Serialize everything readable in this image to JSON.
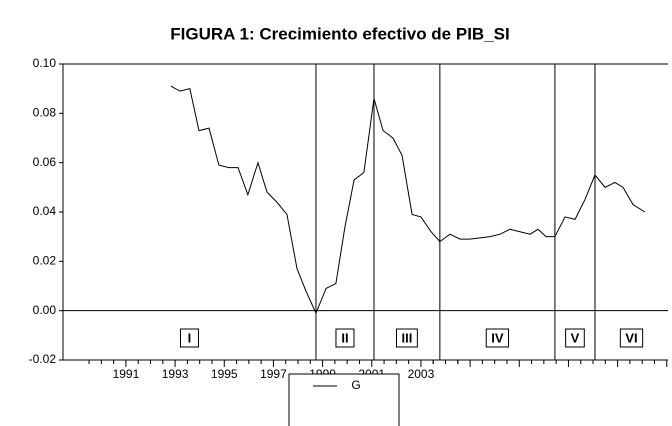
{
  "chart_data": {
    "type": "line",
    "title": "FIGURA 1: Crecimiento efectivo de PIB_SI",
    "x": [
      1992.83,
      1993.2,
      1993.6,
      1993.97,
      1994.38,
      1994.78,
      1995.19,
      1995.56,
      1995.96,
      1996.37,
      1996.74,
      1997.14,
      1997.55,
      1997.96,
      1998.32,
      1998.73,
      1999.14,
      1999.54,
      1999.91,
      2000.28,
      2000.68,
      2001.09,
      2001.46,
      2001.86,
      2002.23,
      2002.64,
      2003.0,
      2003.41,
      2003.77,
      2004.18,
      2004.59,
      2004.99,
      2005.4,
      2005.81,
      2006.22,
      2006.62,
      2007.03,
      2007.44,
      2007.76,
      2008.09,
      2008.45,
      2008.86,
      2009.27,
      2009.67,
      2010.08,
      2010.49,
      2010.89,
      2011.22,
      2011.63,
      2012.11
    ],
    "series": [
      {
        "name": "G",
        "color": "#000000",
        "values": [
          0.091,
          0.089,
          0.09,
          0.073,
          0.074,
          0.059,
          0.058,
          0.058,
          0.047,
          0.06,
          0.048,
          0.044,
          0.039,
          0.017,
          0.008,
          -0.001,
          0.009,
          0.011,
          0.034,
          0.053,
          0.056,
          0.086,
          0.073,
          0.07,
          0.063,
          0.039,
          0.038,
          0.032,
          0.028,
          0.031,
          0.029,
          0.029,
          0.0295,
          0.03,
          0.031,
          0.033,
          0.032,
          0.031,
          0.033,
          0.03,
          0.03,
          0.038,
          0.037,
          0.045,
          0.055,
          0.05,
          0.052,
          0.05,
          0.043,
          0.04
        ]
      }
    ],
    "xlim": [
      1988.44,
      2013.05
    ],
    "xticks": [
      1991,
      1993,
      1995,
      1997,
      1999,
      2001,
      2003
    ],
    "ylim": [
      -0.02,
      0.1
    ],
    "yticks": [
      {
        "value": -0.02,
        "label": "-0.02"
      },
      {
        "value": 0,
        "label": "0.00"
      },
      {
        "value": 0.02,
        "label": "0.02"
      },
      {
        "value": 0.04,
        "label": "0.04"
      },
      {
        "value": 0.06,
        "label": "0.06"
      },
      {
        "value": 0.08,
        "label": "0.08"
      },
      {
        "value": 0.1,
        "label": "0.10"
      }
    ],
    "vlines": [
      1998.73,
      2001.09,
      2003.77,
      2008.45,
      2010.08
    ],
    "periods": [
      "I",
      "II",
      "III",
      "IV",
      "V",
      "VI"
    ],
    "legend": "bottom"
  }
}
